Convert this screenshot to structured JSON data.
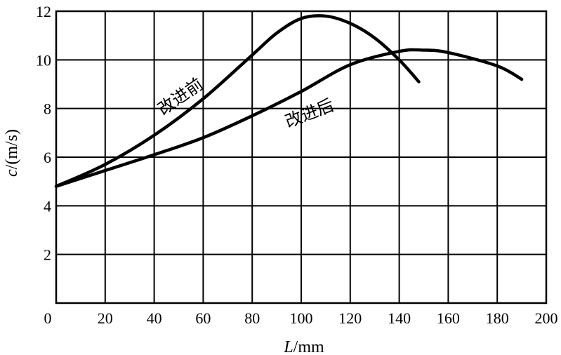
{
  "chart_data": {
    "type": "line",
    "xlabel": {
      "var": "L",
      "unit": "/mm"
    },
    "ylabel": {
      "var": "c",
      "unit": "/(m/s)"
    },
    "xlim": [
      0,
      200
    ],
    "ylim": [
      0,
      12
    ],
    "xticks": [
      "0",
      "20",
      "40",
      "60",
      "80",
      "100",
      "120",
      "140",
      "160",
      "180",
      "200"
    ],
    "yticks": [
      "2",
      "4",
      "6",
      "8",
      "10",
      "12"
    ],
    "grid": true,
    "series": [
      {
        "name": "改进前",
        "x": [
          0,
          20,
          40,
          60,
          80,
          90,
          100,
          110,
          120,
          130,
          140,
          148
        ],
        "y": [
          4.8,
          5.7,
          6.9,
          8.4,
          10.2,
          11.1,
          11.7,
          11.8,
          11.5,
          10.9,
          10.0,
          9.1
        ]
      },
      {
        "name": "改进后",
        "x": [
          0,
          20,
          40,
          60,
          80,
          100,
          120,
          140,
          150,
          160,
          180,
          190
        ],
        "y": [
          4.8,
          5.45,
          6.1,
          6.8,
          7.7,
          8.7,
          9.8,
          10.35,
          10.4,
          10.3,
          9.75,
          9.2
        ]
      }
    ]
  }
}
